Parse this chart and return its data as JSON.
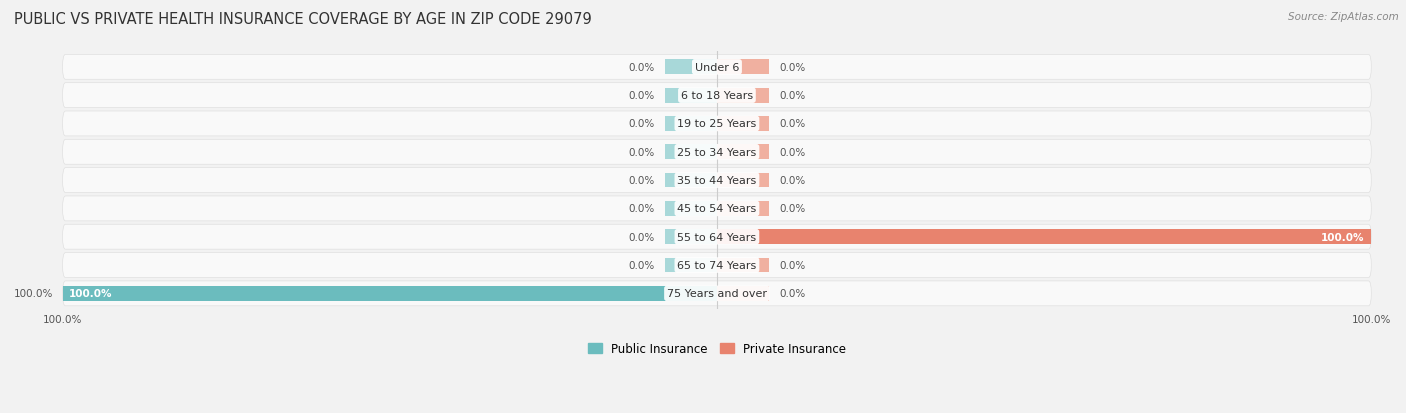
{
  "title": "PUBLIC VS PRIVATE HEALTH INSURANCE COVERAGE BY AGE IN ZIP CODE 29079",
  "source": "Source: ZipAtlas.com",
  "categories": [
    "Under 6",
    "6 to 18 Years",
    "19 to 25 Years",
    "25 to 34 Years",
    "35 to 44 Years",
    "45 to 54 Years",
    "55 to 64 Years",
    "65 to 74 Years",
    "75 Years and over"
  ],
  "public_values": [
    0.0,
    0.0,
    0.0,
    0.0,
    0.0,
    0.0,
    0.0,
    0.0,
    100.0
  ],
  "private_values": [
    0.0,
    0.0,
    0.0,
    0.0,
    0.0,
    0.0,
    100.0,
    0.0,
    0.0
  ],
  "public_color": "#6bbcbe",
  "private_color": "#e8836e",
  "public_color_light": "#a8d8d9",
  "private_color_light": "#f0b0a0",
  "public_label": "Public Insurance",
  "private_label": "Private Insurance",
  "xlim": 100,
  "bar_height": 0.52,
  "min_bar_width": 8.0,
  "bg_color": "#f2f2f2",
  "row_bg": "#f9f9f9",
  "row_border": "#e0e0e0",
  "title_fontsize": 10.5,
  "source_fontsize": 7.5,
  "legend_fontsize": 8.5,
  "value_fontsize": 7.5,
  "category_fontsize": 8.0
}
